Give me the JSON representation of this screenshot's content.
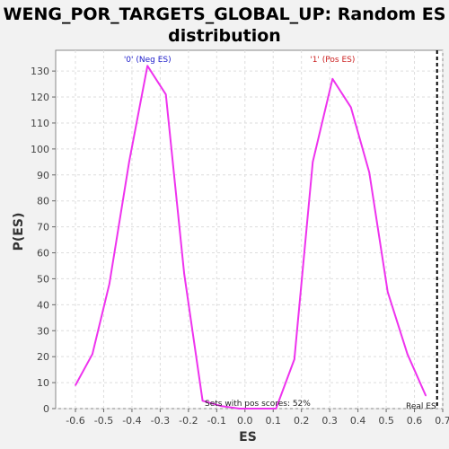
{
  "chart_data": {
    "type": "line",
    "title_line1": "WENG_POR_TARGETS_GLOBAL_UP: Random ES",
    "title_line2": "distribution",
    "xlabel": "ES",
    "ylabel": "P(ES)",
    "xlim": [
      -0.67,
      0.7
    ],
    "ylim": [
      0,
      138
    ],
    "xticks": [
      -0.6,
      -0.5,
      -0.4,
      -0.3,
      -0.2,
      -0.1,
      0.0,
      0.1,
      0.2,
      0.3,
      0.4,
      0.5,
      0.6,
      0.7
    ],
    "xtick_labels": [
      "-0.6",
      "-0.5",
      "-0.4",
      "-0.3",
      "-0.2",
      "-0.1",
      "0.0",
      "0.1",
      "0.2",
      "0.3",
      "0.4",
      "0.5",
      "0.6",
      "0.7"
    ],
    "yticks": [
      0,
      10,
      20,
      30,
      40,
      50,
      60,
      70,
      80,
      90,
      100,
      110,
      120,
      130
    ],
    "grid": true,
    "series": [
      {
        "color": "#ee33ee",
        "x": [
          -0.6,
          -0.54,
          -0.48,
          -0.41,
          -0.345,
          -0.28,
          -0.215,
          -0.15,
          -0.085,
          -0.02,
          0.045,
          0.11,
          0.175,
          0.24,
          0.31,
          0.375,
          0.44,
          0.505,
          0.575,
          0.64
        ],
        "y": [
          9,
          21,
          48,
          95,
          132,
          121,
          52,
          3,
          1,
          0,
          0,
          0,
          19,
          95,
          127,
          116,
          91,
          45,
          21,
          5
        ]
      }
    ],
    "annotations": [
      {
        "text": "'0' (Neg ES)",
        "x": -0.345,
        "color": "#2222cc"
      },
      {
        "text": "'1' (Pos ES)",
        "x": 0.31,
        "color": "#cc2222"
      },
      {
        "text": "Sets with pos scores: 52%",
        "x": 0.045,
        "color": "#222222"
      },
      {
        "text": "Real ES",
        "x": 0.68,
        "color": "#222222"
      }
    ],
    "real_es": 0.68
  }
}
